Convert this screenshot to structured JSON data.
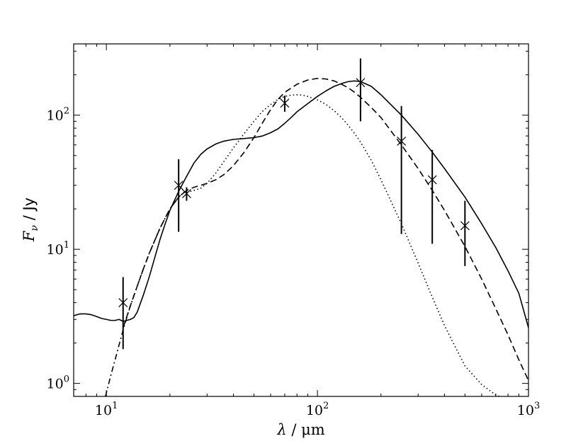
{
  "chart_data": {
    "type": "line",
    "title": "",
    "x_scale": "log",
    "y_scale": "log",
    "xlim": [
      7,
      1000
    ],
    "ylim": [
      0.8,
      340
    ],
    "grid": false,
    "legend": "none",
    "xlabel": {
      "symbol": "λ",
      "unit": " / μm"
    },
    "ylabel": {
      "symbol": "F",
      "subscript": "ν",
      "unit": " / Jy"
    },
    "x_ticks": [
      {
        "value": 10,
        "base": "10",
        "exp": "1"
      },
      {
        "value": 100,
        "base": "10",
        "exp": "2"
      },
      {
        "value": 1000,
        "base": "10",
        "exp": "3"
      }
    ],
    "y_ticks": [
      {
        "value": 1,
        "base": "10",
        "exp": "0"
      },
      {
        "value": 10,
        "base": "10",
        "exp": "1"
      },
      {
        "value": 100,
        "base": "10",
        "exp": "2"
      }
    ],
    "series": [
      {
        "style": "solid",
        "x": [
          7,
          7.5,
          8,
          8.5,
          9,
          9.5,
          10,
          10.5,
          11,
          11.5,
          12,
          12.5,
          13,
          13.5,
          14,
          15,
          16,
          17,
          18,
          19,
          20,
          22,
          24,
          26,
          28,
          30,
          33,
          36,
          40,
          45,
          50,
          55,
          60,
          65,
          70,
          75,
          80,
          90,
          100,
          110,
          120,
          130,
          140,
          150,
          160,
          180,
          200,
          250,
          300,
          350,
          400,
          500,
          600,
          700,
          800,
          900,
          1000
        ],
        "y": [
          3.2,
          3.3,
          3.3,
          3.25,
          3.15,
          3.05,
          3.0,
          2.95,
          2.95,
          3.0,
          2.9,
          2.95,
          3.0,
          3.1,
          3.4,
          4.6,
          6.3,
          8.8,
          12,
          15.5,
          19.5,
          27,
          35,
          44,
          51,
          56,
          61,
          64,
          66,
          67,
          68,
          70,
          74,
          79,
          87,
          96,
          106,
          122,
          138,
          152,
          164,
          172,
          178,
          180,
          178,
          164,
          142,
          100,
          72,
          53,
          40,
          24.5,
          15.5,
          10.3,
          6.9,
          4.7,
          2.6
        ]
      },
      {
        "style": "dashed",
        "x": [
          12,
          13,
          14,
          15,
          16,
          18,
          20,
          22,
          24,
          26,
          28,
          30,
          33,
          36,
          40,
          45,
          50,
          55,
          60,
          65,
          70,
          80,
          90,
          100,
          110,
          120,
          130,
          140,
          150,
          160,
          180,
          200,
          250,
          300,
          350,
          400,
          500,
          600,
          700,
          800,
          900,
          1000
        ],
        "y": [
          2.6,
          3.8,
          5.3,
          7.2,
          9.4,
          14.5,
          20,
          24.5,
          27.5,
          29,
          30,
          31,
          33,
          36,
          42,
          53,
          68,
          88,
          110,
          131,
          148,
          170,
          183,
          188,
          186,
          180,
          170,
          160,
          148,
          136,
          114,
          96,
          60,
          40,
          27.5,
          19.5,
          10.5,
          6.0,
          3.6,
          2.3,
          1.5,
          1.05
        ]
      },
      {
        "style": "dotted",
        "x": [
          25,
          28,
          30,
          33,
          36,
          40,
          45,
          50,
          55,
          60,
          65,
          70,
          75,
          80,
          85,
          90,
          100,
          110,
          120,
          130,
          140,
          150,
          160,
          180,
          200,
          250,
          300,
          350,
          400,
          500,
          600,
          700,
          760
        ],
        "y": [
          27,
          28.5,
          31,
          37,
          45,
          57,
          73,
          90,
          107,
          120,
          131,
          138,
          141,
          142,
          141,
          138,
          130,
          120,
          108,
          96,
          84,
          73,
          63,
          46,
          33,
          15.5,
          7.9,
          4.4,
          2.7,
          1.35,
          0.98,
          0.82,
          0.78
        ]
      },
      {
        "style": "dashdot",
        "x": [
          9.9,
          10.5,
          11,
          11.5,
          12,
          13,
          14,
          15,
          16,
          18,
          20,
          22,
          24
        ],
        "y": [
          0.8,
          1.15,
          1.5,
          1.95,
          2.5,
          3.8,
          5.3,
          7.2,
          9.4,
          14.5,
          20,
          24.5,
          27.5
        ]
      }
    ],
    "observations": {
      "x": [
        12,
        22,
        24,
        70,
        160,
        250,
        350,
        500
      ],
      "y": [
        4.0,
        30,
        26,
        123,
        175,
        64,
        33,
        15
      ],
      "err_low": [
        1.8,
        13.5,
        23,
        106,
        90,
        13,
        11,
        7.5
      ],
      "err_high": [
        6.2,
        47,
        29,
        140,
        265,
        117,
        55,
        23
      ]
    }
  }
}
